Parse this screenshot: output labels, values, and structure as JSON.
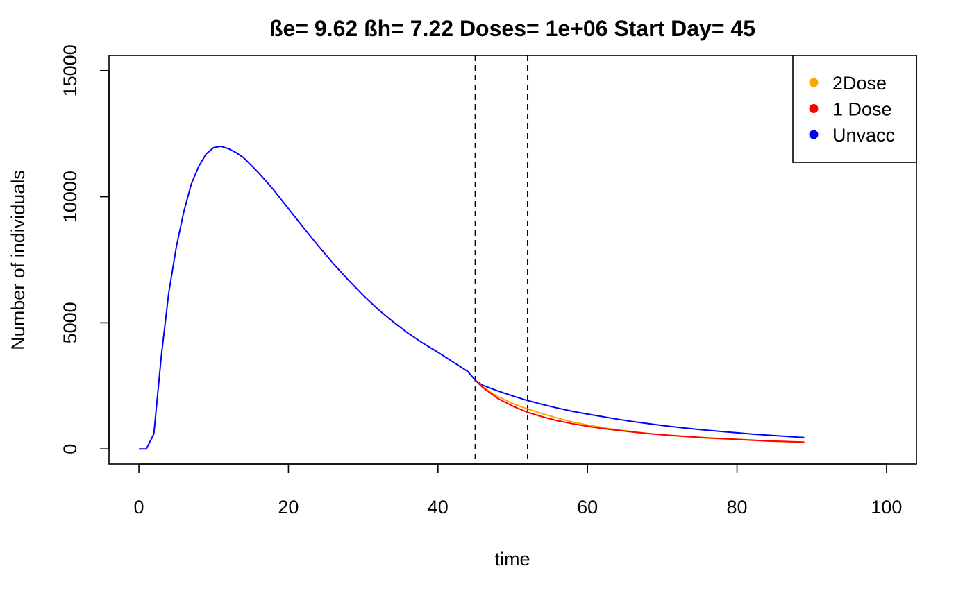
{
  "chart_data": {
    "type": "line",
    "title": "ße= 9.62  ßh= 7.22  Doses= 1e+06  Start Day= 45",
    "xlabel": "time",
    "ylabel": "Number of individuals",
    "xlim": [
      -4,
      104
    ],
    "ylim": [
      -600,
      15600
    ],
    "xticks": [
      0,
      20,
      40,
      60,
      80,
      100
    ],
    "yticks": [
      0,
      5000,
      10000,
      15000
    ],
    "xtick_labels": [
      "0",
      "20",
      "40",
      "60",
      "80",
      "100"
    ],
    "ytick_labels": [
      "0",
      "5000",
      "10000",
      "15000"
    ],
    "vlines": [
      45,
      52
    ],
    "legend_position": "top-right",
    "legend": [
      {
        "name": "2Dose",
        "color": "#FFA500"
      },
      {
        "name": "1 Dose",
        "color": "#FF0000"
      },
      {
        "name": "Unvacc",
        "color": "#0000FF"
      }
    ],
    "series": [
      {
        "name": "Unvacc",
        "color": "#0000FF",
        "x": [
          0,
          1,
          2,
          3,
          4,
          5,
          6,
          7,
          8,
          9,
          10,
          11,
          12,
          13,
          14,
          15,
          16,
          17,
          18,
          19,
          20,
          22,
          24,
          26,
          28,
          30,
          32,
          34,
          36,
          38,
          40,
          42,
          44,
          45,
          46,
          48,
          50,
          52,
          54,
          56,
          58,
          60,
          62,
          64,
          66,
          68,
          70,
          72,
          74,
          76,
          78,
          80,
          82,
          84,
          86,
          88,
          89
        ],
        "y": [
          0,
          0,
          600,
          3700,
          6200,
          8000,
          9400,
          10500,
          11200,
          11700,
          11950,
          12000,
          11900,
          11750,
          11550,
          11250,
          10950,
          10620,
          10280,
          9900,
          9530,
          8780,
          8050,
          7350,
          6700,
          6090,
          5530,
          5040,
          4590,
          4190,
          3830,
          3450,
          3070,
          2720,
          2520,
          2300,
          2100,
          1920,
          1760,
          1620,
          1490,
          1380,
          1280,
          1180,
          1090,
          1010,
          930,
          860,
          800,
          740,
          690,
          640,
          590,
          550,
          510,
          470,
          450
        ]
      },
      {
        "name": "2Dose",
        "color": "#FFA500",
        "x": [
          45,
          46,
          48,
          50,
          52,
          54,
          56,
          58,
          60,
          62,
          64,
          66,
          68,
          70,
          72,
          74,
          76,
          78,
          80,
          82,
          84,
          86,
          88,
          89
        ],
        "y": [
          2720,
          2450,
          2080,
          1800,
          1580,
          1390,
          1220,
          1070,
          950,
          850,
          760,
          690,
          620,
          560,
          510,
          470,
          430,
          400,
          370,
          340,
          310,
          290,
          270,
          260
        ]
      },
      {
        "name": "1 Dose",
        "color": "#FF0000",
        "x": [
          45,
          46,
          48,
          50,
          52,
          54,
          56,
          58,
          60,
          62,
          64,
          66,
          68,
          70,
          72,
          74,
          76,
          78,
          80,
          82,
          84,
          86,
          88,
          89
        ],
        "y": [
          2720,
          2430,
          2000,
          1700,
          1450,
          1270,
          1120,
          1000,
          900,
          810,
          740,
          670,
          610,
          560,
          520,
          480,
          440,
          410,
          380,
          350,
          320,
          300,
          280,
          270
        ]
      }
    ]
  }
}
